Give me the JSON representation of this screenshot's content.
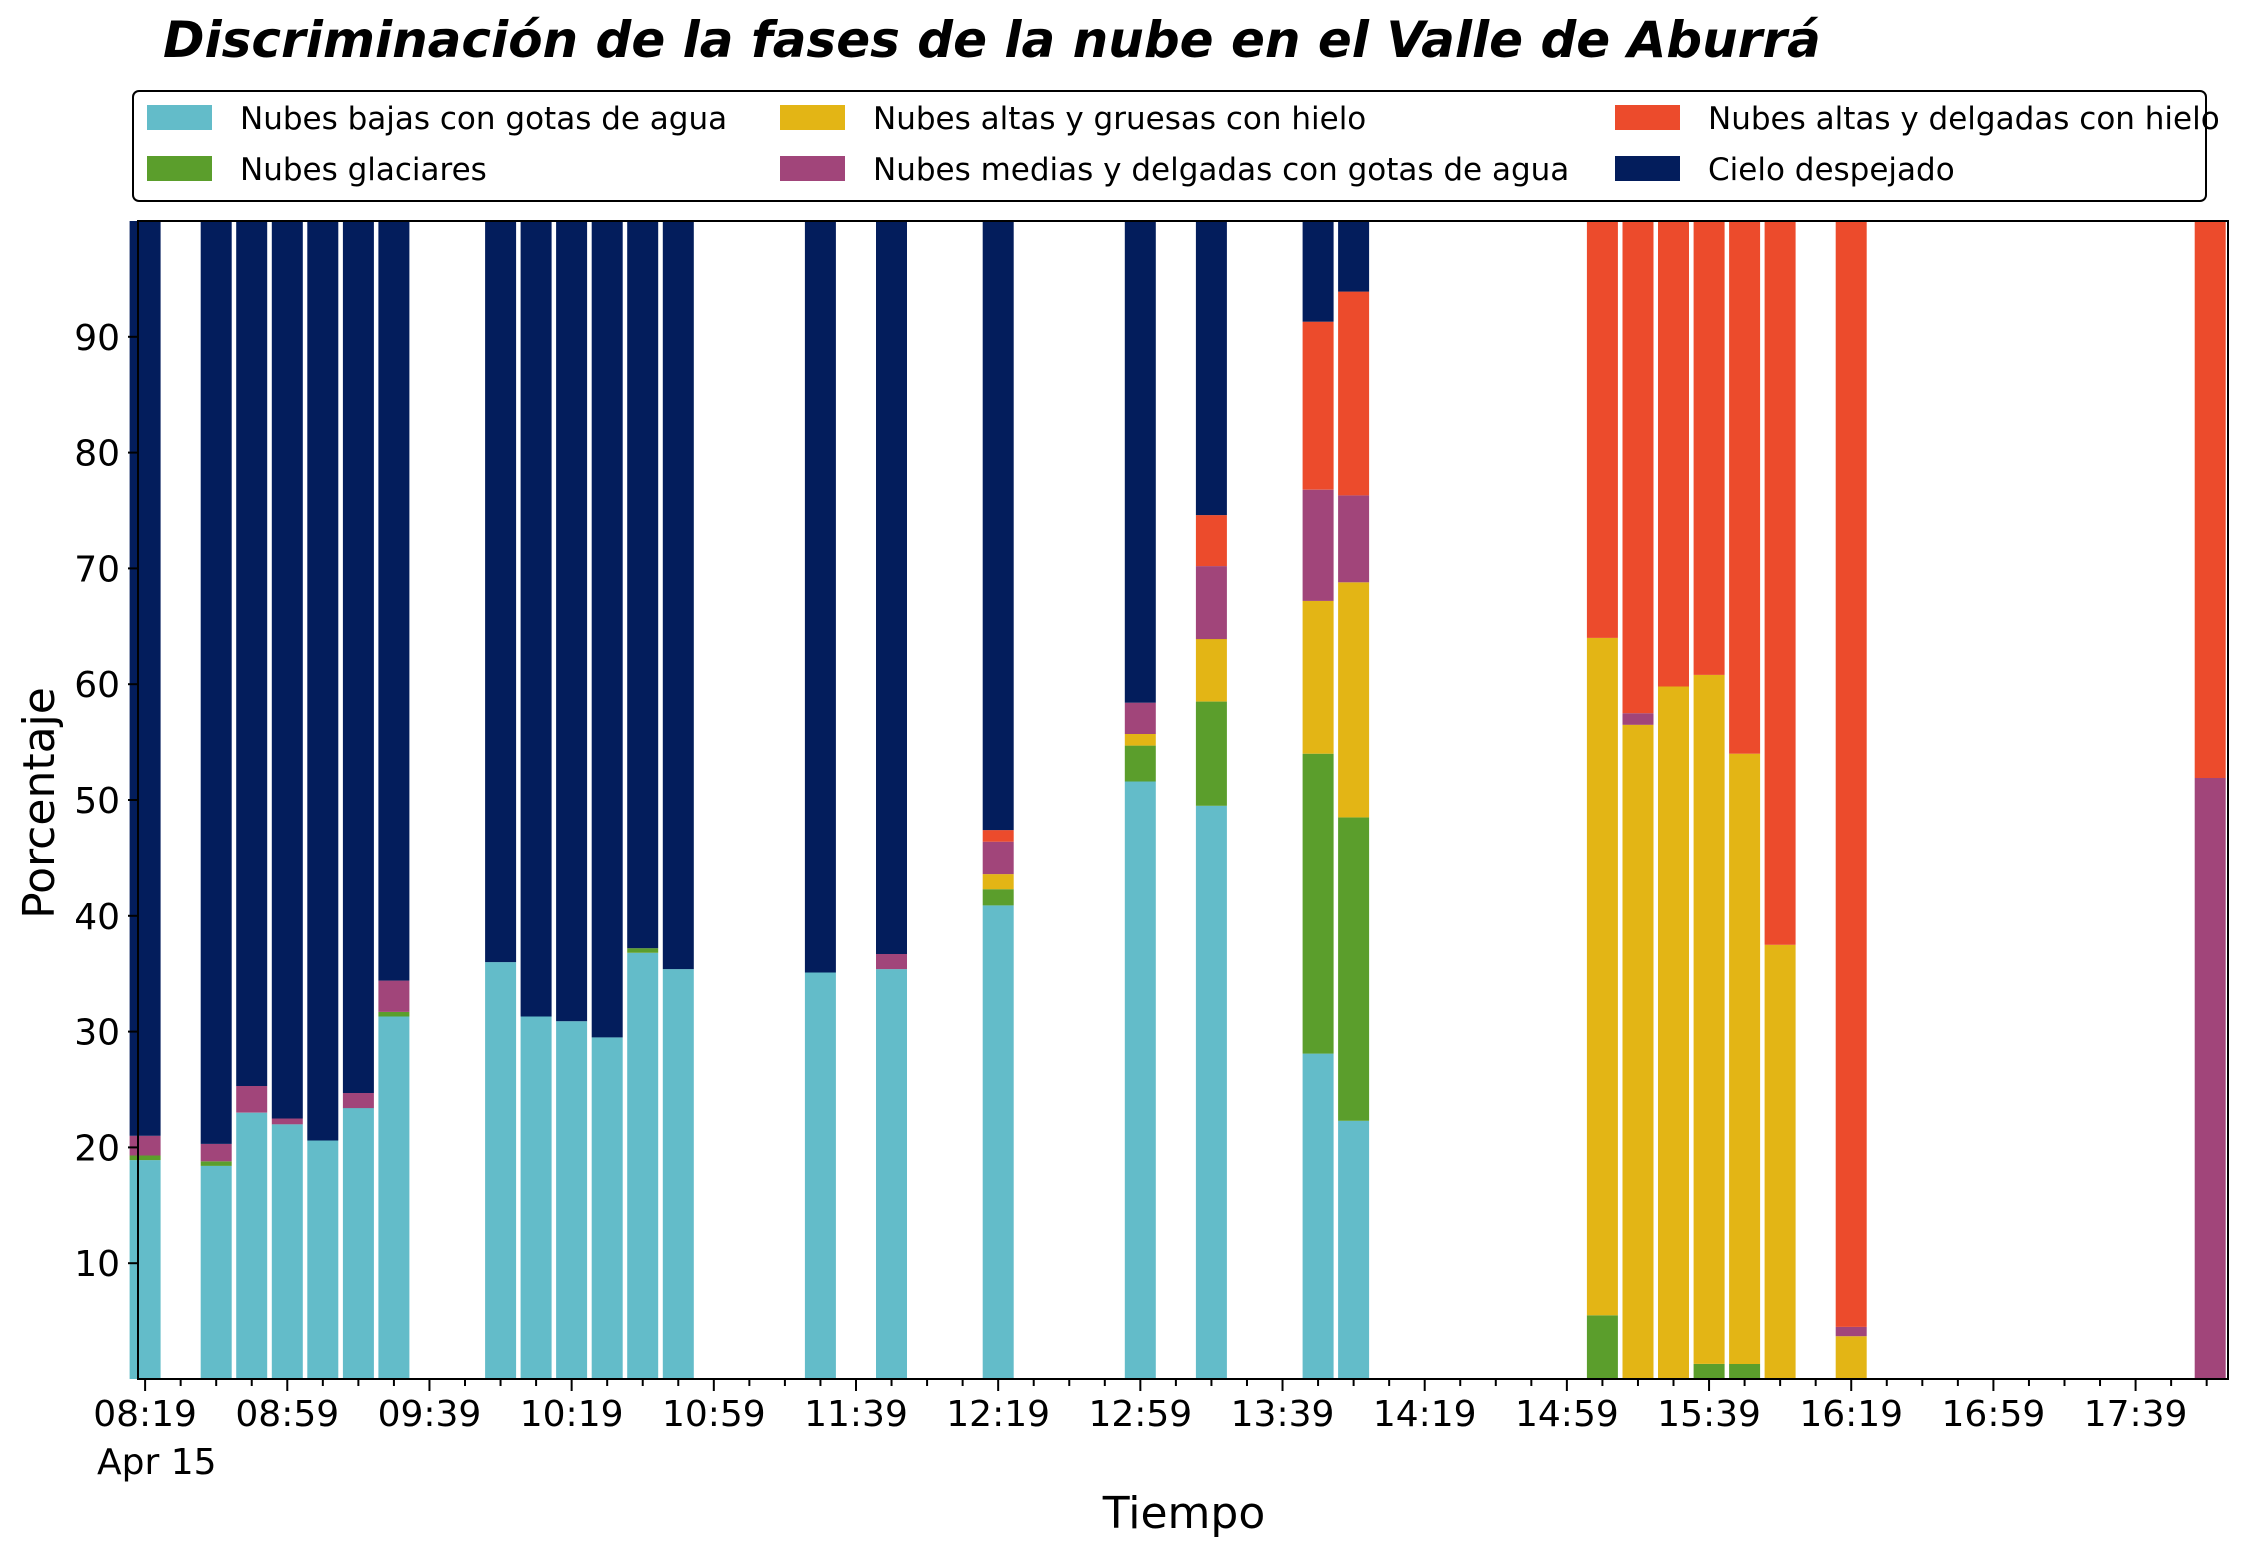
{
  "chart_data": {
    "type": "bar",
    "stacked": true,
    "title": "Discriminación de la fases de la nube en el Valle de Aburrá",
    "xlabel": "Tiempo",
    "ylabel": "Porcentaje",
    "ylim": [
      0,
      100
    ],
    "yticks": [
      10,
      20,
      30,
      40,
      50,
      60,
      70,
      80,
      90
    ],
    "x_tick_labels": [
      "08:19",
      "08:59",
      "09:39",
      "10:19",
      "10:59",
      "11:39",
      "12:19",
      "12:59",
      "13:39",
      "14:19",
      "14:59",
      "15:39",
      "16:19",
      "16:59",
      "17:39"
    ],
    "x_date_label": "Apr 15",
    "x_range_minutes": [
      "08:17",
      "18:05"
    ],
    "grid": false,
    "legend_position": "top",
    "series": [
      {
        "name": "Nubes bajas con gotas de agua",
        "color": "#63BCC9"
      },
      {
        "name": "Nubes glaciares",
        "color": "#5B9E2C"
      },
      {
        "name": "Nubes altas y gruesas con hielo",
        "color": "#E3B515"
      },
      {
        "name": "Nubes medias y delgadas con gotas de agua",
        "color": "#A1457A"
      },
      {
        "name": "Nubes altas y delgadas con hielo",
        "color": "#EC4B2C"
      },
      {
        "name": "Cielo despejado",
        "color": "#031D5C"
      }
    ],
    "bars": [
      {
        "time": "08:19",
        "values": [
          18.9,
          0.4,
          0,
          1.7,
          0,
          79.0
        ]
      },
      {
        "time": "08:39",
        "values": [
          18.4,
          0.4,
          0,
          1.5,
          0,
          79.7
        ]
      },
      {
        "time": "08:49",
        "values": [
          23.0,
          0,
          0,
          2.3,
          0,
          74.7
        ]
      },
      {
        "time": "08:59",
        "values": [
          22.0,
          0,
          0,
          0.5,
          0,
          77.5
        ]
      },
      {
        "time": "09:09",
        "values": [
          20.6,
          0,
          0,
          0,
          0,
          79.4
        ]
      },
      {
        "time": "09:19",
        "values": [
          23.4,
          0,
          0,
          1.3,
          0,
          75.3
        ]
      },
      {
        "time": "09:29",
        "values": [
          31.3,
          0.4,
          0,
          2.7,
          0,
          65.6
        ]
      },
      {
        "time": "09:59",
        "values": [
          36.0,
          0,
          0,
          0,
          0,
          64.0
        ]
      },
      {
        "time": "10:09",
        "values": [
          31.3,
          0,
          0,
          0,
          0,
          68.7
        ]
      },
      {
        "time": "10:19",
        "values": [
          30.9,
          0,
          0,
          0,
          0,
          69.1
        ]
      },
      {
        "time": "10:29",
        "values": [
          29.5,
          0,
          0,
          0,
          0,
          70.5
        ]
      },
      {
        "time": "10:39",
        "values": [
          36.8,
          0.4,
          0,
          0,
          0,
          62.8
        ]
      },
      {
        "time": "10:49",
        "values": [
          35.4,
          0,
          0,
          0,
          0,
          64.6
        ]
      },
      {
        "time": "11:29",
        "values": [
          35.1,
          0,
          0,
          0,
          0,
          64.9
        ]
      },
      {
        "time": "11:49",
        "values": [
          35.4,
          0,
          0,
          1.3,
          0,
          63.3
        ]
      },
      {
        "time": "12:19",
        "values": [
          40.9,
          1.4,
          1.3,
          2.8,
          1.0,
          52.6
        ]
      },
      {
        "time": "12:59",
        "values": [
          51.6,
          3.1,
          1.0,
          2.7,
          0,
          41.6
        ]
      },
      {
        "time": "13:19",
        "values": [
          49.5,
          9.0,
          5.4,
          6.3,
          4.4,
          25.4
        ]
      },
      {
        "time": "13:49",
        "values": [
          28.1,
          25.9,
          13.2,
          9.6,
          14.5,
          8.7
        ]
      },
      {
        "time": "13:59",
        "values": [
          22.3,
          26.2,
          20.3,
          7.5,
          17.6,
          6.1
        ]
      },
      {
        "time": "15:09",
        "values": [
          0,
          5.5,
          58.5,
          0,
          36.0,
          0
        ]
      },
      {
        "time": "15:19",
        "values": [
          0,
          0,
          56.5,
          1.0,
          42.5,
          0
        ]
      },
      {
        "time": "15:29",
        "values": [
          0,
          0,
          59.8,
          0,
          40.2,
          0
        ]
      },
      {
        "time": "15:39",
        "values": [
          0,
          1.3,
          59.5,
          0,
          39.2,
          0
        ]
      },
      {
        "time": "15:49",
        "values": [
          0,
          1.3,
          52.7,
          0,
          46.0,
          0
        ]
      },
      {
        "time": "15:59",
        "values": [
          0,
          0,
          37.5,
          0,
          62.5,
          0
        ]
      },
      {
        "time": "16:19",
        "values": [
          0,
          0,
          3.7,
          0.8,
          95.5,
          0
        ]
      },
      {
        "time": "18:00",
        "values": [
          0,
          0,
          0,
          51.9,
          48.1,
          0
        ]
      }
    ]
  }
}
